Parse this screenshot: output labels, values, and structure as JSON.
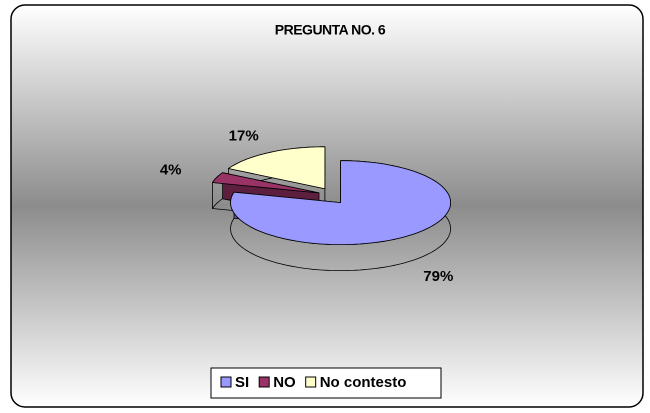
{
  "chart_data": {
    "type": "pie",
    "title": "PREGUNTA NO. 6",
    "categories": [
      "SI",
      "NO",
      "No contesto"
    ],
    "values": [
      79,
      4,
      17
    ],
    "value_labels": [
      "79%",
      "4%",
      "17%"
    ],
    "colors": [
      "#9999ff",
      "#993366",
      "#ffffcc"
    ],
    "legend": "bottom"
  }
}
